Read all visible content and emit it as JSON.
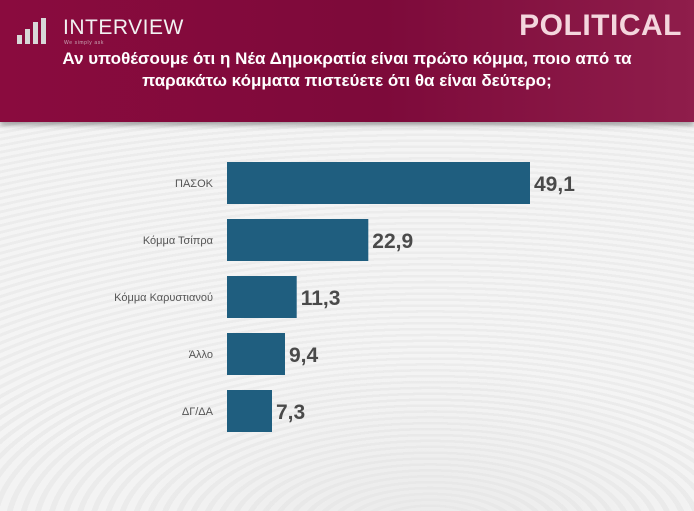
{
  "header": {
    "brand": "INTERVIEW",
    "tagline": "We simply ask",
    "political": "POLITICAL",
    "question": "Αν υποθέσουμε ότι η Νέα Δημοκρατία είναι πρώτο κόμμα, ποιο από τα παρακάτω κόμματα πιστεύετε ότι θα είναι δεύτερο;"
  },
  "colors": {
    "header_bg": "#7d0a3a",
    "bar": "#1f5e7f",
    "value_text": "#4a4a4a",
    "category_text": "#555555"
  },
  "chart_data": {
    "type": "bar",
    "orientation": "horizontal",
    "title": "Αν υποθέσουμε ότι η Νέα Δημοκρατία είναι πρώτο κόμμα, ποιο από τα παρακάτω κόμματα πιστεύετε ότι θα είναι δεύτερο;",
    "categories": [
      "ΠΑΣΟΚ",
      "Κόμμα Τσίπρα",
      "Κόμμα Καρυστιανού",
      "Άλλο",
      "ΔΓ/ΔΑ"
    ],
    "values": [
      49.1,
      22.9,
      11.3,
      9.4,
      7.3
    ],
    "value_labels": [
      "49,1",
      "22,9",
      "11,3",
      "9,4",
      "7,3"
    ],
    "xlim": [
      0,
      49.1
    ],
    "grid": false,
    "legend": "none"
  }
}
